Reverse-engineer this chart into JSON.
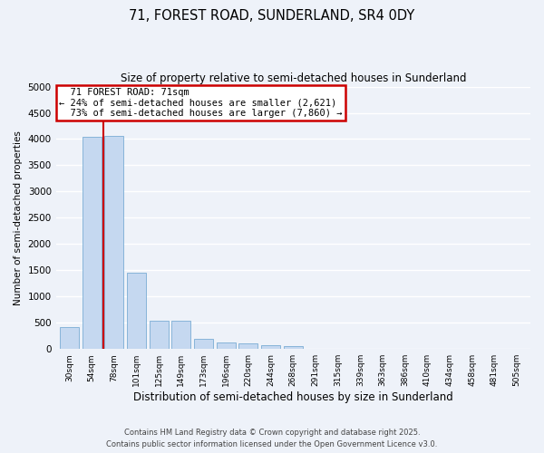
{
  "title1": "71, FOREST ROAD, SUNDERLAND, SR4 0DY",
  "title2": "Size of property relative to semi-detached houses in Sunderland",
  "xlabel": "Distribution of semi-detached houses by size in Sunderland",
  "ylabel": "Number of semi-detached properties",
  "categories": [
    "30sqm",
    "54sqm",
    "78sqm",
    "101sqm",
    "125sqm",
    "149sqm",
    "173sqm",
    "196sqm",
    "220sqm",
    "244sqm",
    "268sqm",
    "291sqm",
    "315sqm",
    "339sqm",
    "363sqm",
    "386sqm",
    "410sqm",
    "434sqm",
    "458sqm",
    "481sqm",
    "505sqm"
  ],
  "values": [
    420,
    4050,
    4060,
    1450,
    540,
    540,
    195,
    130,
    110,
    70,
    55,
    0,
    0,
    0,
    0,
    0,
    0,
    0,
    0,
    0,
    0
  ],
  "bar_color": "#c5d8f0",
  "bar_edge_color": "#7aadd4",
  "property_sqm": 71,
  "pct_smaller": 24,
  "count_smaller": 2621,
  "pct_larger": 73,
  "count_larger": 7860,
  "annotation_label": "71 FOREST ROAD: 71sqm",
  "ylim": [
    0,
    5000
  ],
  "yticks": [
    0,
    500,
    1000,
    1500,
    2000,
    2500,
    3000,
    3500,
    4000,
    4500,
    5000
  ],
  "footer1": "Contains HM Land Registry data © Crown copyright and database right 2025.",
  "footer2": "Contains public sector information licensed under the Open Government Licence v3.0.",
  "bg_color": "#eef2f9",
  "grid_color": "#ffffff",
  "annotation_box_color": "#ffffff",
  "annotation_box_edge": "#cc0000",
  "red_line_color": "#cc0000",
  "red_line_x": 1.5
}
